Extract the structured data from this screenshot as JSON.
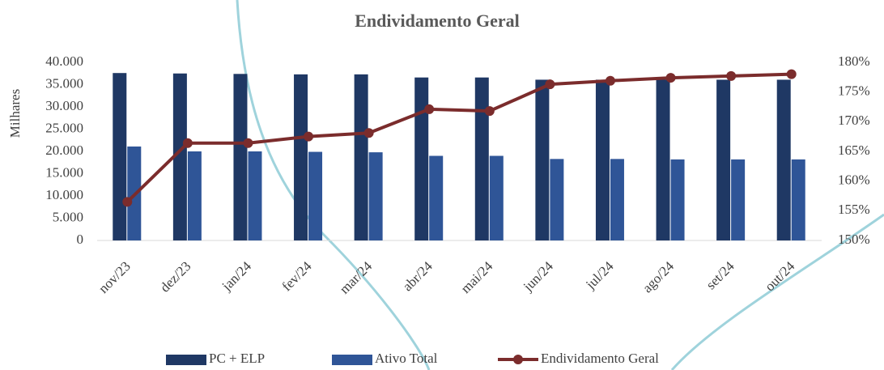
{
  "chart_data": {
    "type": "bar_line",
    "title": "Endividamento Geral",
    "y_label": "Milhares",
    "categories": [
      "nov/23",
      "dez/23",
      "jan/24",
      "fev/24",
      "mar/24",
      "abr/24",
      "mai/24",
      "jun/24",
      "jul/24",
      "ago/24",
      "set/24",
      "out/24"
    ],
    "series": [
      {
        "name": "PC + ELP",
        "color": "#1f3864",
        "type": "bar",
        "values": [
          37600,
          37500,
          37400,
          37300,
          37300,
          36600,
          36600,
          36100,
          36100,
          36100,
          36100,
          36100
        ]
      },
      {
        "name": "Ativo Total",
        "color": "#2f5597",
        "type": "bar",
        "values": [
          21100,
          20000,
          20000,
          19900,
          19800,
          19000,
          19000,
          18300,
          18300,
          18200,
          18200,
          18200
        ]
      },
      {
        "name": "Endividamento Geral",
        "color": "#7b2c2c",
        "type": "line",
        "axis": "y2",
        "values": [
          156.5,
          166.4,
          166.4,
          167.5,
          168.1,
          172.1,
          171.8,
          176.3,
          176.9,
          177.4,
          177.7,
          178.0
        ]
      }
    ],
    "ylim": [
      0,
      40000
    ],
    "yticks": [
      {
        "value": 0,
        "label": "0"
      },
      {
        "value": 5000,
        "label": "5.000"
      },
      {
        "value": 10000,
        "label": "10.000"
      },
      {
        "value": 15000,
        "label": "15.000"
      },
      {
        "value": 20000,
        "label": "20.000"
      },
      {
        "value": 25000,
        "label": "25.000"
      },
      {
        "value": 30000,
        "label": "30.000"
      },
      {
        "value": 35000,
        "label": "35.000"
      },
      {
        "value": 40000,
        "label": "40.000"
      }
    ],
    "y2lim": [
      150,
      180
    ],
    "y2ticks": [
      {
        "value": 150,
        "label": "150%"
      },
      {
        "value": 155,
        "label": "155%"
      },
      {
        "value": 160,
        "label": "160%"
      },
      {
        "value": 165,
        "label": "165%"
      },
      {
        "value": 170,
        "label": "170%"
      },
      {
        "value": 175,
        "label": "175%"
      },
      {
        "value": 180,
        "label": "180%"
      }
    ]
  }
}
